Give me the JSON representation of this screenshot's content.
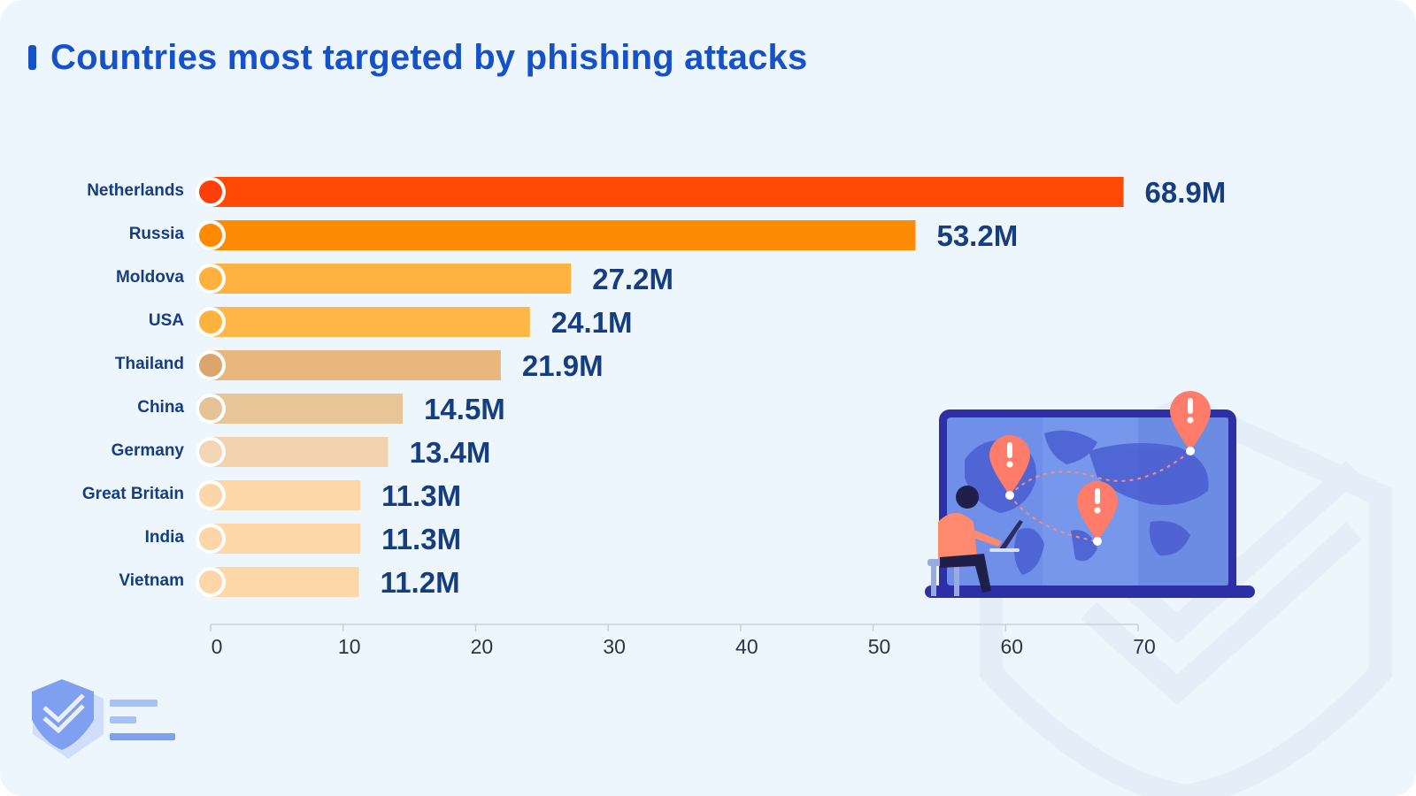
{
  "title": "Countries most targeted by phishing attacks",
  "chart_data": {
    "type": "bar",
    "orientation": "horizontal",
    "title": "Countries most targeted by phishing attacks",
    "xlabel": "",
    "ylabel": "",
    "categories": [
      "Netherlands",
      "Russia",
      "Moldova",
      "USA",
      "Thailand",
      "China",
      "Germany",
      "Great Britain",
      "India",
      "Vietnam"
    ],
    "values": [
      68.9,
      53.2,
      27.2,
      24.1,
      21.9,
      14.5,
      13.4,
      11.3,
      11.3,
      11.2
    ],
    "value_labels": [
      "68.9M",
      "53.2M",
      "27.2M",
      "24.1M",
      "21.9M",
      "14.5M",
      "13.4M",
      "11.3M",
      "11.3M",
      "11.2M"
    ],
    "bar_colors": [
      "#ff4a05",
      "#ff8b04",
      "#ffb23f",
      "#ffb847",
      "#e9b67e",
      "#e8c596",
      "#f2d2ae",
      "#fdd7a8",
      "#fdd7a8",
      "#fdd7a8"
    ],
    "dot_colors": [
      "#ff3f0a",
      "#ff8a00",
      "#ffb13d",
      "#ffb23e",
      "#dca56e",
      "#e6c396",
      "#f3d6b5",
      "#fcd6a6",
      "#fcd6a6",
      "#fcd6a6"
    ],
    "xlim": [
      0,
      70
    ],
    "xticks": [
      0,
      10,
      20,
      30,
      40,
      50,
      60,
      70
    ],
    "grid": false,
    "legend": "none"
  },
  "colors": {
    "background": "#eef6fd",
    "title": "#1552c9",
    "label": "#163d80",
    "laptop": "#2f2fa5",
    "screen": "#6f8fe8",
    "alert_pin": "#ff7b6a"
  },
  "illustration": {
    "icon": "hacker-laptop-world-map-illustration"
  },
  "logo": {
    "icon": "shield-check-logo-icon"
  }
}
